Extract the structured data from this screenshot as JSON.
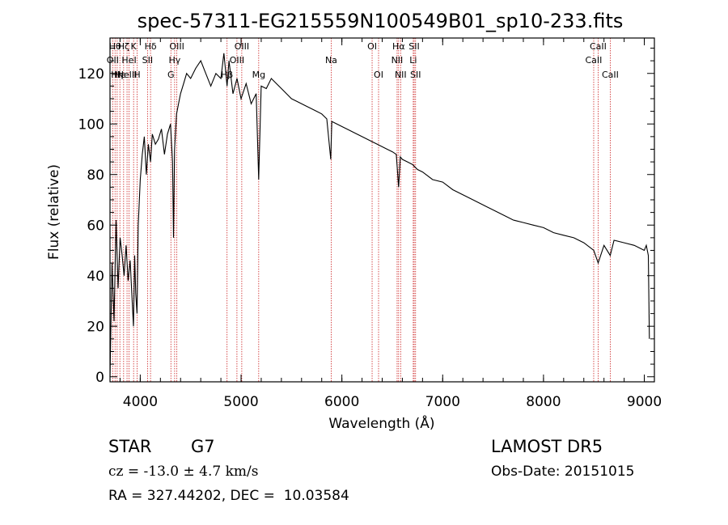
{
  "chart_data": {
    "type": "line",
    "title": "spec-57311-EG215559N100549B01_sp10-233.fits",
    "xlabel": "Wavelength (Å)",
    "ylabel": "Flux (relative)",
    "xlim": [
      3700,
      9100
    ],
    "ylim": [
      -2,
      134
    ],
    "x_ticks": [
      4000,
      5000,
      6000,
      7000,
      8000,
      9000
    ],
    "y_ticks": [
      0,
      20,
      40,
      60,
      80,
      100,
      120
    ],
    "grid": false,
    "series": [
      {
        "x": [
          3700,
          3720,
          3740,
          3760,
          3780,
          3800,
          3820,
          3840,
          3860,
          3880,
          3900,
          3920,
          3933,
          3945,
          3955,
          3968,
          3980,
          4000,
          4020,
          4040,
          4060,
          4080,
          4102,
          4120,
          4150,
          4180,
          4210,
          4240,
          4270,
          4300,
          4320,
          4330,
          4340,
          4360,
          4380,
          4400,
          4430,
          4460,
          4500,
          4550,
          4600,
          4650,
          4700,
          4750,
          4800,
          4830,
          4861,
          4880,
          4920,
          4960,
          5000,
          5050,
          5100,
          5150,
          5175,
          5200,
          5250,
          5300,
          5350,
          5400,
          5450,
          5500,
          5550,
          5600,
          5650,
          5700,
          5750,
          5800,
          5850,
          5890,
          5900,
          5950,
          6000,
          6050,
          6100,
          6150,
          6200,
          6250,
          6300,
          6350,
          6400,
          6450,
          6500,
          6540,
          6563,
          6580,
          6600,
          6650,
          6700,
          6750,
          6800,
          6900,
          7000,
          7100,
          7200,
          7300,
          7400,
          7500,
          7600,
          7700,
          7800,
          7900,
          8000,
          8100,
          8200,
          8300,
          8400,
          8498,
          8542,
          8600,
          8662,
          8700,
          8800,
          8900,
          8950,
          9000,
          9020,
          9040,
          9050
        ],
        "values": [
          0,
          45,
          22,
          62,
          35,
          55,
          48,
          40,
          52,
          38,
          46,
          30,
          20,
          48,
          33,
          25,
          60,
          78,
          88,
          95,
          80,
          92,
          85,
          96,
          92,
          94,
          98,
          88,
          96,
          100,
          85,
          55,
          90,
          104,
          108,
          112,
          116,
          120,
          118,
          122,
          125,
          120,
          115,
          120,
          118,
          128,
          115,
          125,
          112,
          118,
          110,
          116,
          108,
          112,
          78,
          115,
          114,
          118,
          116,
          114,
          112,
          110,
          109,
          108,
          107,
          106,
          105,
          104,
          102,
          86,
          101,
          100,
          99,
          98,
          97,
          96,
          95,
          94,
          93,
          92,
          91,
          90,
          89,
          88,
          75,
          87,
          86,
          85,
          84,
          82,
          81,
          78,
          77,
          74,
          72,
          70,
          68,
          66,
          64,
          62,
          61,
          60,
          59,
          57,
          56,
          55,
          53,
          50,
          45,
          52,
          48,
          54,
          53,
          52,
          51,
          50,
          52,
          48,
          15
        ]
      }
    ],
    "lines": [
      {
        "x": 3727,
        "label": "OII",
        "row": 1
      },
      {
        "x": 3750,
        "label": "Hθ",
        "row": 0
      },
      {
        "x": 3771,
        "label": "Hη",
        "row": 2
      },
      {
        "x": 3798,
        "label": "Hε",
        "row": 2
      },
      {
        "x": 3835,
        "label": "Hζ",
        "row": 0
      },
      {
        "x": 3869,
        "label": "NeIII",
        "row": 2
      },
      {
        "x": 3889,
        "label": "HeI",
        "row": 1
      },
      {
        "x": 3934,
        "label": "K",
        "row": 0
      },
      {
        "x": 3969,
        "label": "H",
        "row": 2
      },
      {
        "x": 4072,
        "label": "SII",
        "row": 1
      },
      {
        "x": 4102,
        "label": "Hδ",
        "row": 0
      },
      {
        "x": 4304,
        "label": "G",
        "row": 2
      },
      {
        "x": 4341,
        "label": "Hγ",
        "row": 1
      },
      {
        "x": 4363,
        "label": "OIII",
        "row": 0
      },
      {
        "x": 4861,
        "label": "Hβ",
        "row": 2
      },
      {
        "x": 4959,
        "label": "OIII",
        "row": 1
      },
      {
        "x": 5007,
        "label": "OIII",
        "row": 0
      },
      {
        "x": 5175,
        "label": "Mg",
        "row": 2
      },
      {
        "x": 5894,
        "label": "Na",
        "row": 1
      },
      {
        "x": 6300,
        "label": "OI",
        "row": 0
      },
      {
        "x": 6364,
        "label": "OI",
        "row": 2
      },
      {
        "x": 6548,
        "label": "NII",
        "row": 1
      },
      {
        "x": 6563,
        "label": "Hα",
        "row": 0
      },
      {
        "x": 6583,
        "label": "NII",
        "row": 2
      },
      {
        "x": 6708,
        "label": "Li",
        "row": 1
      },
      {
        "x": 6717,
        "label": "SII",
        "row": 0
      },
      {
        "x": 6731,
        "label": "SII",
        "row": 2
      },
      {
        "x": 8498,
        "label": "CaII",
        "row": 1
      },
      {
        "x": 8542,
        "label": "CaII",
        "row": 0
      },
      {
        "x": 8662,
        "label": "CaII",
        "row": 2
      }
    ]
  },
  "info": {
    "object_class": "STAR",
    "subclass": "G7",
    "survey": "LAMOST DR5",
    "redshift": "cz = -13.0 ± 4.7 km/s",
    "obs_date": "Obs-Date: 20151015",
    "coords": "RA = 327.44202, DEC =  10.03584"
  }
}
